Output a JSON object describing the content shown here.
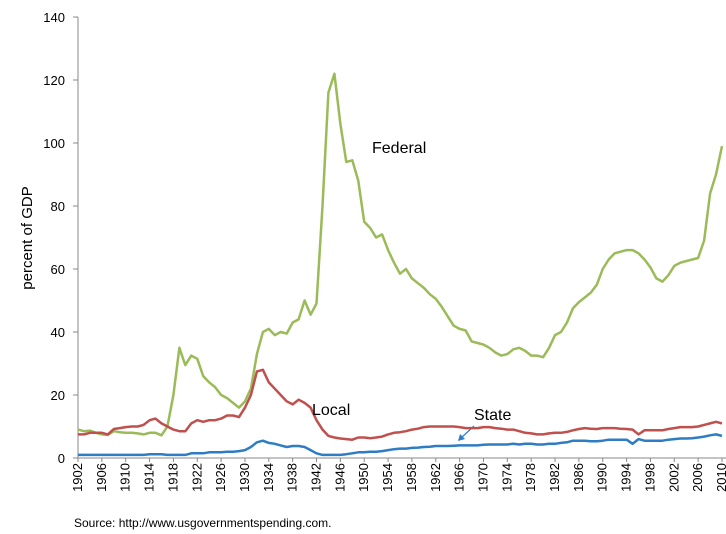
{
  "chart_data": {
    "type": "line",
    "y_label": "percent of GDP",
    "source": "Source:  http://www.usgovernmentspending.com.",
    "x": [
      1902,
      1903,
      1904,
      1905,
      1906,
      1907,
      1908,
      1909,
      1910,
      1911,
      1912,
      1913,
      1914,
      1915,
      1916,
      1917,
      1918,
      1919,
      1920,
      1921,
      1922,
      1923,
      1924,
      1925,
      1926,
      1927,
      1928,
      1929,
      1930,
      1931,
      1932,
      1933,
      1934,
      1935,
      1936,
      1937,
      1938,
      1939,
      1940,
      1941,
      1942,
      1943,
      1944,
      1945,
      1946,
      1947,
      1948,
      1949,
      1950,
      1951,
      1952,
      1953,
      1954,
      1955,
      1956,
      1957,
      1958,
      1959,
      1960,
      1961,
      1962,
      1963,
      1964,
      1965,
      1966,
      1967,
      1968,
      1969,
      1970,
      1971,
      1972,
      1973,
      1974,
      1975,
      1976,
      1977,
      1978,
      1979,
      1980,
      1981,
      1982,
      1983,
      1984,
      1985,
      1986,
      1987,
      1988,
      1989,
      1990,
      1991,
      1992,
      1993,
      1994,
      1995,
      1996,
      1997,
      1998,
      1999,
      2000,
      2001,
      2002,
      2003,
      2004,
      2005,
      2006,
      2007,
      2008,
      2009,
      2010
    ],
    "xlim": [
      1902,
      2010
    ],
    "xticks": [
      1902,
      1906,
      1910,
      1914,
      1918,
      1922,
      1926,
      1930,
      1934,
      1938,
      1942,
      1946,
      1950,
      1954,
      1958,
      1962,
      1966,
      1970,
      1974,
      1978,
      1982,
      1986,
      1990,
      1994,
      1998,
      2002,
      2006,
      2010
    ],
    "ylim": [
      0,
      140
    ],
    "yticks": [
      0,
      20,
      40,
      60,
      80,
      100,
      120,
      140
    ],
    "series": [
      {
        "name": "Federal",
        "color": "#9bbb59",
        "values": [
          9,
          8.5,
          8.7,
          8,
          7.5,
          7.3,
          8.5,
          8.2,
          8,
          8,
          7.8,
          7.5,
          8,
          8,
          7.2,
          10,
          20,
          35,
          29.5,
          32.5,
          31.5,
          26,
          24,
          22.5,
          20,
          19,
          17.5,
          16,
          18,
          22,
          33,
          40,
          41,
          39,
          40,
          39.5,
          43,
          44,
          50,
          45.5,
          49,
          80,
          116,
          122,
          106,
          94,
          94.5,
          88,
          75,
          73,
          70,
          71,
          66,
          62,
          58.5,
          60,
          57,
          55.5,
          54,
          52,
          50.5,
          48,
          45,
          42,
          41,
          40.5,
          37,
          36.5,
          36,
          35,
          33.5,
          32.5,
          33,
          34.5,
          35,
          34,
          32.5,
          32.5,
          32,
          35,
          39,
          40,
          43,
          47.5,
          49.5,
          51,
          52.5,
          55,
          60,
          63,
          65,
          65.5,
          66,
          66,
          65,
          63,
          60.5,
          57,
          56,
          58,
          61,
          62,
          62.5,
          63,
          63.5,
          69,
          84,
          90,
          99
        ]
      },
      {
        "name": "Local",
        "color": "#c0504d",
        "values": [
          7.5,
          7.5,
          8,
          8,
          8,
          7.5,
          9.2,
          9.5,
          9.8,
          10,
          10,
          10.5,
          12,
          12.5,
          11,
          10,
          9,
          8.5,
          8.5,
          11,
          12,
          11.5,
          12,
          12,
          12.5,
          13.5,
          13.5,
          13,
          16,
          20,
          27.5,
          28,
          24,
          22,
          20,
          18,
          17,
          18.5,
          17.5,
          16,
          12,
          9,
          7,
          6.5,
          6.2,
          6,
          5.8,
          6.5,
          6.5,
          6.3,
          6.5,
          6.8,
          7.5,
          8,
          8.2,
          8.5,
          9,
          9.3,
          9.8,
          10,
          10,
          10,
          10,
          10,
          9.8,
          9.5,
          9.5,
          9.5,
          9.8,
          9.8,
          9.5,
          9.3,
          9,
          9,
          8.5,
          8,
          7.8,
          7.5,
          7.5,
          7.8,
          8,
          8,
          8.3,
          8.8,
          9.2,
          9.5,
          9.3,
          9.2,
          9.5,
          9.5,
          9.5,
          9.3,
          9.2,
          9,
          7.5,
          8.8,
          8.8,
          8.8,
          8.8,
          9.2,
          9.5,
          9.8,
          9.8,
          9.8,
          10,
          10.5,
          11,
          11.5,
          11
        ]
      },
      {
        "name": "State",
        "color": "#2e7dc4",
        "values": [
          1,
          1,
          1,
          1,
          1,
          1,
          1,
          1,
          1,
          1,
          1,
          1,
          1.2,
          1.2,
          1.2,
          1,
          1,
          1,
          1,
          1.5,
          1.5,
          1.5,
          1.8,
          1.8,
          1.8,
          2,
          2,
          2.2,
          2.5,
          3.5,
          5,
          5.5,
          4.8,
          4.5,
          4,
          3.5,
          3.8,
          3.8,
          3.5,
          2.5,
          1.5,
          1,
          1,
          1,
          1,
          1.2,
          1.5,
          1.8,
          1.8,
          2,
          2,
          2.2,
          2.5,
          2.8,
          3,
          3,
          3.2,
          3.3,
          3.5,
          3.6,
          3.8,
          3.8,
          3.8,
          3.9,
          4,
          4,
          4,
          4,
          4.2,
          4.3,
          4.3,
          4.3,
          4.3,
          4.5,
          4.3,
          4.5,
          4.5,
          4.3,
          4.3,
          4.5,
          4.5,
          4.8,
          5,
          5.5,
          5.5,
          5.5,
          5.3,
          5.3,
          5.5,
          5.8,
          5.8,
          5.8,
          5.8,
          4.5,
          6,
          5.5,
          5.5,
          5.5,
          5.5,
          5.8,
          6,
          6.2,
          6.2,
          6.3,
          6.5,
          6.8,
          7.2,
          7.5,
          7
        ]
      }
    ]
  }
}
